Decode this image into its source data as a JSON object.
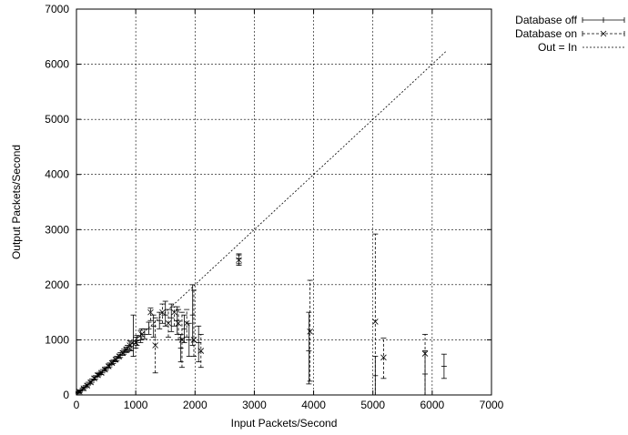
{
  "chart_data": {
    "type": "scatter",
    "title": "",
    "xlabel": "Input Packets/Second",
    "ylabel": "Output Packets/Second",
    "xlim": [
      0,
      7000
    ],
    "ylim": [
      0,
      7000
    ],
    "xticks": [
      0,
      1000,
      2000,
      3000,
      4000,
      5000,
      6000,
      7000
    ],
    "yticks": [
      0,
      1000,
      2000,
      3000,
      4000,
      5000,
      6000,
      7000
    ],
    "grid": true,
    "legend_position": "top-right-outside",
    "series": [
      {
        "name": "Database off",
        "style": "solid-errorbar",
        "points": [
          {
            "x": 30,
            "y": 40,
            "ylo": 20,
            "yhi": 60
          },
          {
            "x": 60,
            "y": 70,
            "ylo": 50,
            "yhi": 90
          },
          {
            "x": 100,
            "y": 100,
            "ylo": 80,
            "yhi": 120
          },
          {
            "x": 150,
            "y": 150,
            "ylo": 130,
            "yhi": 170
          },
          {
            "x": 200,
            "y": 200,
            "ylo": 180,
            "yhi": 230
          },
          {
            "x": 260,
            "y": 260,
            "ylo": 230,
            "yhi": 290
          },
          {
            "x": 320,
            "y": 320,
            "ylo": 290,
            "yhi": 350
          },
          {
            "x": 380,
            "y": 380,
            "ylo": 350,
            "yhi": 410
          },
          {
            "x": 440,
            "y": 430,
            "ylo": 400,
            "yhi": 460
          },
          {
            "x": 500,
            "y": 480,
            "ylo": 450,
            "yhi": 510
          },
          {
            "x": 560,
            "y": 540,
            "ylo": 510,
            "yhi": 580
          },
          {
            "x": 620,
            "y": 600,
            "ylo": 570,
            "yhi": 640
          },
          {
            "x": 680,
            "y": 660,
            "ylo": 620,
            "yhi": 700
          },
          {
            "x": 740,
            "y": 720,
            "ylo": 680,
            "yhi": 770
          },
          {
            "x": 800,
            "y": 780,
            "ylo": 740,
            "yhi": 830
          },
          {
            "x": 860,
            "y": 840,
            "ylo": 780,
            "yhi": 900
          },
          {
            "x": 920,
            "y": 880,
            "ylo": 800,
            "yhi": 960
          },
          {
            "x": 960,
            "y": 930,
            "ylo": 700,
            "yhi": 1450
          },
          {
            "x": 1020,
            "y": 980,
            "ylo": 900,
            "yhi": 1080
          },
          {
            "x": 1080,
            "y": 1060,
            "ylo": 950,
            "yhi": 1170
          },
          {
            "x": 1150,
            "y": 1100,
            "ylo": 1020,
            "yhi": 1200
          },
          {
            "x": 1220,
            "y": 1200,
            "ylo": 1100,
            "yhi": 1320
          },
          {
            "x": 1300,
            "y": 1250,
            "ylo": 1050,
            "yhi": 1450
          },
          {
            "x": 1400,
            "y": 1350,
            "ylo": 1200,
            "yhi": 1500
          },
          {
            "x": 1500,
            "y": 1450,
            "ylo": 1250,
            "yhi": 1700
          },
          {
            "x": 1600,
            "y": 1400,
            "ylo": 1150,
            "yhi": 1650
          },
          {
            "x": 1700,
            "y": 1350,
            "ylo": 1100,
            "yhi": 1600
          },
          {
            "x": 1760,
            "y": 850,
            "ylo": 600,
            "yhi": 1100
          },
          {
            "x": 1820,
            "y": 1200,
            "ylo": 950,
            "yhi": 1450
          },
          {
            "x": 1900,
            "y": 1000,
            "ylo": 700,
            "yhi": 1300
          },
          {
            "x": 1960,
            "y": 1450,
            "ylo": 900,
            "yhi": 2000
          },
          {
            "x": 2060,
            "y": 950,
            "ylo": 600,
            "yhi": 1250
          },
          {
            "x": 2740,
            "y": 2470,
            "ylo": 2380,
            "yhi": 2560
          },
          {
            "x": 3920,
            "y": 800,
            "ylo": 200,
            "yhi": 1500
          },
          {
            "x": 5040,
            "y": 350,
            "ylo": 0,
            "yhi": 700
          },
          {
            "x": 5880,
            "y": 380,
            "ylo": 0,
            "yhi": 800
          },
          {
            "x": 6200,
            "y": 520,
            "ylo": 300,
            "yhi": 740
          }
        ]
      },
      {
        "name": "Database on",
        "style": "dashed-errorbar-cross",
        "points": [
          {
            "x": 50,
            "y": 60,
            "ylo": 40,
            "yhi": 80
          },
          {
            "x": 120,
            "y": 120,
            "ylo": 100,
            "yhi": 140
          },
          {
            "x": 180,
            "y": 170,
            "ylo": 150,
            "yhi": 200
          },
          {
            "x": 240,
            "y": 230,
            "ylo": 200,
            "yhi": 260
          },
          {
            "x": 300,
            "y": 300,
            "ylo": 270,
            "yhi": 330
          },
          {
            "x": 360,
            "y": 360,
            "ylo": 330,
            "yhi": 390
          },
          {
            "x": 420,
            "y": 400,
            "ylo": 370,
            "yhi": 430
          },
          {
            "x": 480,
            "y": 460,
            "ylo": 430,
            "yhi": 490
          },
          {
            "x": 540,
            "y": 520,
            "ylo": 490,
            "yhi": 560
          },
          {
            "x": 600,
            "y": 580,
            "ylo": 550,
            "yhi": 620
          },
          {
            "x": 660,
            "y": 640,
            "ylo": 600,
            "yhi": 680
          },
          {
            "x": 720,
            "y": 700,
            "ylo": 660,
            "yhi": 740
          },
          {
            "x": 780,
            "y": 760,
            "ylo": 720,
            "yhi": 800
          },
          {
            "x": 840,
            "y": 820,
            "ylo": 770,
            "yhi": 870
          },
          {
            "x": 900,
            "y": 900,
            "ylo": 820,
            "yhi": 980
          },
          {
            "x": 1000,
            "y": 950,
            "ylo": 850,
            "yhi": 1050
          },
          {
            "x": 1100,
            "y": 1100,
            "ylo": 1000,
            "yhi": 1200
          },
          {
            "x": 1250,
            "y": 1500,
            "ylo": 1350,
            "yhi": 1580
          },
          {
            "x": 1330,
            "y": 900,
            "ylo": 400,
            "yhi": 1400
          },
          {
            "x": 1450,
            "y": 1500,
            "ylo": 1300,
            "yhi": 1650
          },
          {
            "x": 1550,
            "y": 1300,
            "ylo": 1050,
            "yhi": 1550
          },
          {
            "x": 1650,
            "y": 1500,
            "ylo": 1250,
            "yhi": 1600
          },
          {
            "x": 1720,
            "y": 1300,
            "ylo": 1000,
            "yhi": 1550
          },
          {
            "x": 1780,
            "y": 1000,
            "ylo": 500,
            "yhi": 1500
          },
          {
            "x": 1860,
            "y": 1300,
            "ylo": 1050,
            "yhi": 1550
          },
          {
            "x": 1980,
            "y": 1000,
            "ylo": 700,
            "yhi": 1900
          },
          {
            "x": 2100,
            "y": 800,
            "ylo": 500,
            "yhi": 1100
          },
          {
            "x": 2740,
            "y": 2450,
            "ylo": 2350,
            "yhi": 2540
          },
          {
            "x": 3940,
            "y": 1150,
            "ylo": 250,
            "yhi": 2080
          },
          {
            "x": 5040,
            "y": 1330,
            "ylo": 0,
            "yhi": 2920
          },
          {
            "x": 5180,
            "y": 680,
            "ylo": 300,
            "yhi": 1030
          },
          {
            "x": 5880,
            "y": 750,
            "ylo": 0,
            "yhi": 1100
          }
        ]
      },
      {
        "name": "Out = In",
        "style": "dotted-line",
        "line": [
          [
            0,
            0
          ],
          [
            6250,
            6250
          ]
        ]
      }
    ]
  }
}
